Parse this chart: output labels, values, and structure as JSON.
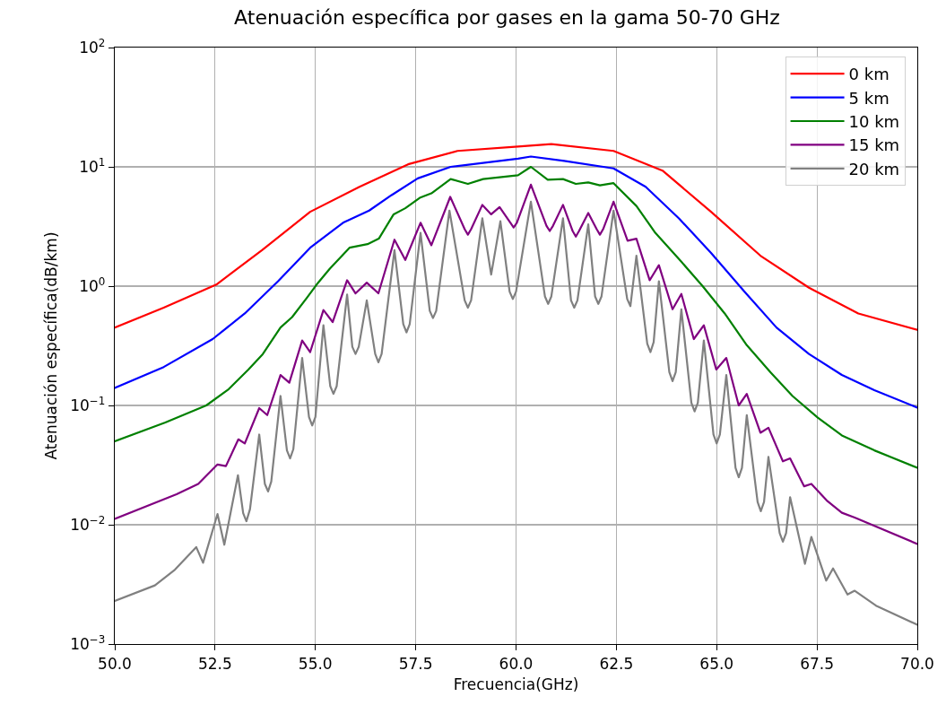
{
  "chart_data": {
    "type": "line",
    "title": "Atenuación específica por gases en la gama 50-70 GHz",
    "xlabel": "Frecuencia(GHz)",
    "ylabel": "Atenuación específica(dB/km)",
    "log": "y",
    "grid": true,
    "legend": "top right",
    "line_style": "solid",
    "marker": "none",
    "xlim": [
      50,
      70
    ],
    "xticks": [
      {
        "value": 50,
        "label": "50.0"
      },
      {
        "value": 52.5,
        "label": "52.5"
      },
      {
        "value": 55,
        "label": "55.0"
      },
      {
        "value": 57.5,
        "label": "57.5"
      },
      {
        "value": 60,
        "label": "60.0"
      },
      {
        "value": 62.5,
        "label": "62.5"
      },
      {
        "value": 65,
        "label": "65.0"
      },
      {
        "value": 67.5,
        "label": "67.5"
      },
      {
        "value": 70,
        "label": "70.0"
      }
    ],
    "ylim": [
      0.001,
      100
    ],
    "yticks": [
      {
        "value": 0.001,
        "label": "10$^{−3}$"
      },
      {
        "value": 0.01,
        "label": "10$^{−2}$"
      },
      {
        "value": 0.1,
        "label": "10$^{−1}$"
      },
      {
        "value": 1,
        "label": "10$^{0}$"
      },
      {
        "value": 10,
        "label": "10$^{1}$"
      },
      {
        "value": 100,
        "label": "10$^{2}$"
      }
    ],
    "series": [
      {
        "name": "0 km",
        "color": "#ff0000",
        "x": [
          50,
          51.22,
          52.53,
          53.67,
          54.87,
          56.1,
          57.31,
          58.54,
          60.05,
          60.88,
          62.43,
          63.65,
          64.86,
          66.09,
          67.3,
          68.53,
          70
        ],
        "values": [
          0.45,
          0.66,
          1.03,
          2.0,
          4.2,
          6.8,
          10.5,
          13.6,
          14.8,
          15.5,
          13.6,
          9.3,
          4.2,
          1.8,
          0.97,
          0.59,
          0.43
        ]
      },
      {
        "name": "5 km",
        "color": "#0000ff",
        "x": [
          50,
          51.22,
          52.44,
          53.24,
          54.07,
          54.87,
          55.69,
          56.34,
          56.9,
          57.55,
          58.37,
          60.05,
          60.37,
          61.2,
          62.43,
          63.23,
          64.06,
          64.86,
          65.69,
          66.49,
          67.3,
          68.12,
          68.93,
          70
        ],
        "values": [
          0.14,
          0.21,
          0.36,
          0.59,
          1.1,
          2.1,
          3.4,
          4.3,
          5.8,
          8.0,
          10,
          11.7,
          12.2,
          11.2,
          9.7,
          6.8,
          3.7,
          1.9,
          0.9,
          0.45,
          0.27,
          0.18,
          0.134,
          0.096
        ]
      },
      {
        "name": "10 km",
        "color": "#008000",
        "x": [
          50,
          51.26,
          52.28,
          52.84,
          53.33,
          53.69,
          54.13,
          54.42,
          54.79,
          55.03,
          55.36,
          55.85,
          56.3,
          56.58,
          56.95,
          57.24,
          57.6,
          57.89,
          58.37,
          58.8,
          59.18,
          60.05,
          60.37,
          60.79,
          61.17,
          61.49,
          61.8,
          62.09,
          62.43,
          63.0,
          63.47,
          64.12,
          64.65,
          65.2,
          65.75,
          66.34,
          66.89,
          67.52,
          68.12,
          68.93,
          70
        ],
        "values": [
          0.05,
          0.072,
          0.1,
          0.137,
          0.2,
          0.27,
          0.45,
          0.55,
          0.8,
          1.03,
          1.4,
          2.1,
          2.25,
          2.5,
          4.0,
          4.5,
          5.5,
          6.0,
          7.9,
          7.2,
          7.9,
          8.5,
          10,
          7.8,
          7.9,
          7.2,
          7.4,
          7.0,
          7.3,
          4.7,
          2.8,
          1.6,
          1.0,
          0.59,
          0.32,
          0.19,
          0.12,
          0.079,
          0.056,
          0.042,
          0.03
        ]
      },
      {
        "name": "15 km",
        "color": "#800080",
        "x": [
          50,
          51.54,
          52.08,
          52.56,
          52.77,
          53.08,
          53.24,
          53.6,
          53.8,
          54.13,
          54.35,
          54.67,
          54.87,
          55.2,
          55.43,
          55.79,
          56.0,
          56.28,
          56.57,
          56.97,
          57.24,
          57.62,
          57.89,
          58.36,
          58.72,
          58.8,
          58.88,
          59.16,
          59.38,
          59.59,
          59.86,
          59.94,
          60.02,
          60.37,
          60.76,
          60.84,
          60.92,
          61.17,
          61.41,
          61.49,
          61.57,
          61.8,
          62.01,
          62.09,
          62.17,
          62.43,
          62.78,
          63.0,
          63.33,
          63.56,
          63.9,
          64.12,
          64.43,
          64.68,
          64.99,
          65.24,
          65.55,
          65.75,
          66.09,
          66.29,
          66.65,
          66.83,
          67.18,
          67.36,
          67.74,
          68.12,
          68.44,
          70
        ],
        "values": [
          0.0112,
          0.018,
          0.022,
          0.032,
          0.031,
          0.052,
          0.048,
          0.095,
          0.083,
          0.18,
          0.155,
          0.35,
          0.28,
          0.63,
          0.5,
          1.12,
          0.87,
          1.07,
          0.87,
          2.45,
          1.66,
          3.4,
          2.2,
          5.6,
          3.0,
          2.7,
          3.0,
          4.8,
          4.0,
          4.6,
          3.4,
          3.1,
          3.4,
          7.1,
          3.2,
          2.9,
          3.2,
          4.8,
          2.9,
          2.6,
          2.9,
          4.1,
          3.0,
          2.7,
          3.0,
          5.1,
          2.4,
          2.5,
          1.12,
          1.5,
          0.64,
          0.86,
          0.36,
          0.47,
          0.2,
          0.25,
          0.1,
          0.125,
          0.059,
          0.065,
          0.034,
          0.036,
          0.021,
          0.022,
          0.016,
          0.0126,
          0.0115,
          0.0069
        ]
      },
      {
        "name": "20 km",
        "color": "#808080",
        "x": [
          50,
          51.0,
          51.5,
          52.03,
          52.2,
          52.56,
          52.73,
          53.07,
          53.2,
          53.28,
          53.37,
          53.6,
          53.74,
          53.82,
          53.9,
          54.13,
          54.29,
          54.37,
          54.45,
          54.67,
          54.84,
          54.92,
          55.0,
          55.2,
          55.37,
          55.45,
          55.53,
          55.79,
          55.92,
          56.0,
          56.08,
          56.28,
          56.49,
          56.57,
          56.65,
          56.97,
          57.19,
          57.27,
          57.35,
          57.62,
          57.85,
          57.93,
          58.01,
          58.34,
          58.72,
          58.8,
          58.88,
          59.16,
          59.38,
          59.61,
          59.84,
          59.92,
          60.0,
          60.37,
          60.72,
          60.8,
          60.88,
          61.17,
          61.37,
          61.45,
          61.53,
          61.8,
          61.97,
          62.05,
          62.13,
          62.43,
          62.77,
          62.85,
          63.0,
          63.27,
          63.35,
          63.43,
          63.56,
          63.82,
          63.9,
          63.98,
          64.12,
          64.37,
          64.45,
          64.53,
          64.68,
          64.92,
          65.0,
          65.08,
          65.24,
          65.47,
          65.55,
          65.63,
          65.75,
          66.02,
          66.1,
          66.18,
          66.29,
          66.57,
          66.65,
          66.73,
          66.83,
          67.2,
          67.36,
          67.73,
          67.9,
          68.26,
          68.44,
          68.97,
          70
        ],
        "values": [
          0.0023,
          0.0031,
          0.0042,
          0.0065,
          0.0048,
          0.0123,
          0.0068,
          0.026,
          0.0125,
          0.0107,
          0.0135,
          0.057,
          0.022,
          0.019,
          0.023,
          0.12,
          0.042,
          0.036,
          0.043,
          0.25,
          0.08,
          0.068,
          0.08,
          0.47,
          0.145,
          0.125,
          0.145,
          0.85,
          0.31,
          0.27,
          0.31,
          0.76,
          0.27,
          0.23,
          0.27,
          2.0,
          0.48,
          0.41,
          0.48,
          2.8,
          0.62,
          0.54,
          0.62,
          4.3,
          0.76,
          0.66,
          0.76,
          3.7,
          1.25,
          3.5,
          0.9,
          0.78,
          0.9,
          5.1,
          0.82,
          0.71,
          0.82,
          3.7,
          0.76,
          0.66,
          0.76,
          3.3,
          0.82,
          0.71,
          0.82,
          4.3,
          0.78,
          0.68,
          1.8,
          0.33,
          0.28,
          0.34,
          1.1,
          0.19,
          0.16,
          0.19,
          0.64,
          0.105,
          0.089,
          0.105,
          0.35,
          0.057,
          0.048,
          0.057,
          0.18,
          0.03,
          0.025,
          0.03,
          0.083,
          0.0155,
          0.013,
          0.0155,
          0.037,
          0.0085,
          0.0072,
          0.0085,
          0.017,
          0.0047,
          0.0079,
          0.0034,
          0.0043,
          0.0026,
          0.0028,
          0.0021,
          0.00145
        ]
      }
    ]
  }
}
